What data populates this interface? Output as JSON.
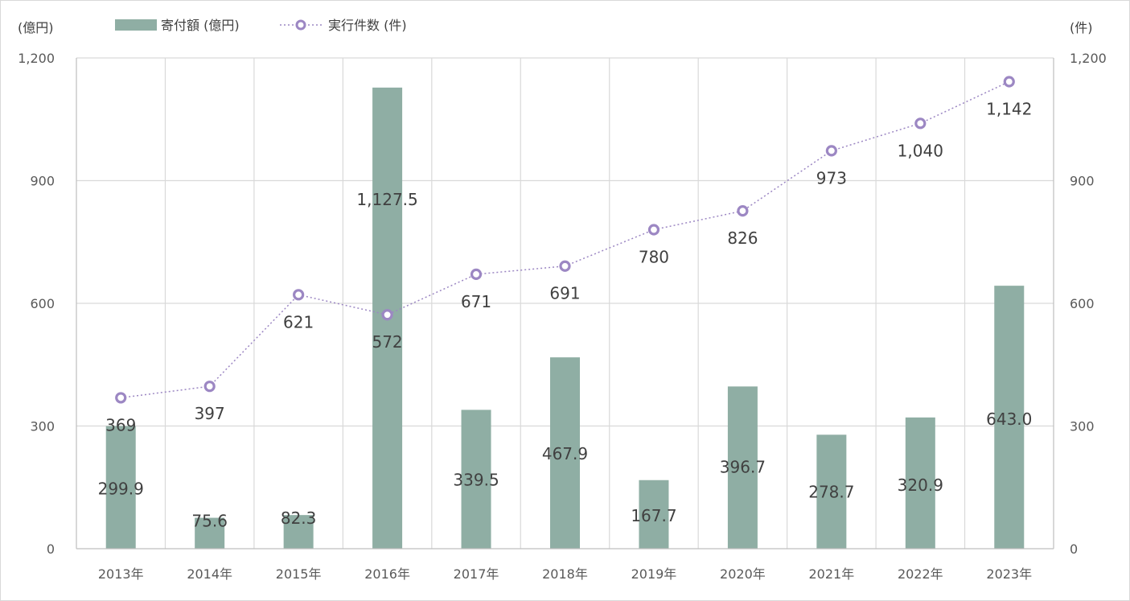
{
  "chart_data": {
    "type": "bar",
    "categories": [
      "2013年",
      "2014年",
      "2015年",
      "2016年",
      "2017年",
      "2018年",
      "2019年",
      "2020年",
      "2021年",
      "2022年",
      "2023年"
    ],
    "series": [
      {
        "name": "寄付額 (億円)",
        "type": "bar",
        "axis": "left",
        "color": "#8faea4",
        "values": [
          299.9,
          75.6,
          82.3,
          1127.5,
          339.5,
          467.9,
          167.7,
          396.7,
          278.7,
          320.9,
          643.0
        ],
        "labels": [
          "299.9",
          "75.6",
          "82.3",
          "1,127.5",
          "339.5",
          "467.9",
          "167.7",
          "396.7",
          "278.7",
          "320.9",
          "643.0"
        ]
      },
      {
        "name": "実行件数 (件)",
        "type": "line",
        "axis": "right",
        "color": "#9c87c3",
        "line_style": "dotted",
        "values": [
          369,
          397,
          621,
          572,
          671,
          691,
          780,
          826,
          973,
          1040,
          1142
        ],
        "labels": [
          "369",
          "397",
          "621",
          "572",
          "671",
          "691",
          "780",
          "826",
          "973",
          "1,040",
          "1,142"
        ]
      }
    ],
    "y_left": {
      "unit": "(億円)",
      "lim": [
        0,
        1200
      ],
      "ticks": [
        "0",
        "300",
        "600",
        "900",
        "1,200"
      ]
    },
    "y_right": {
      "unit": "(件)",
      "lim": [
        0,
        1200
      ],
      "ticks": [
        "0",
        "300",
        "600",
        "900",
        "1,200"
      ]
    },
    "grid": true,
    "legend": {
      "position": "top-left"
    }
  }
}
